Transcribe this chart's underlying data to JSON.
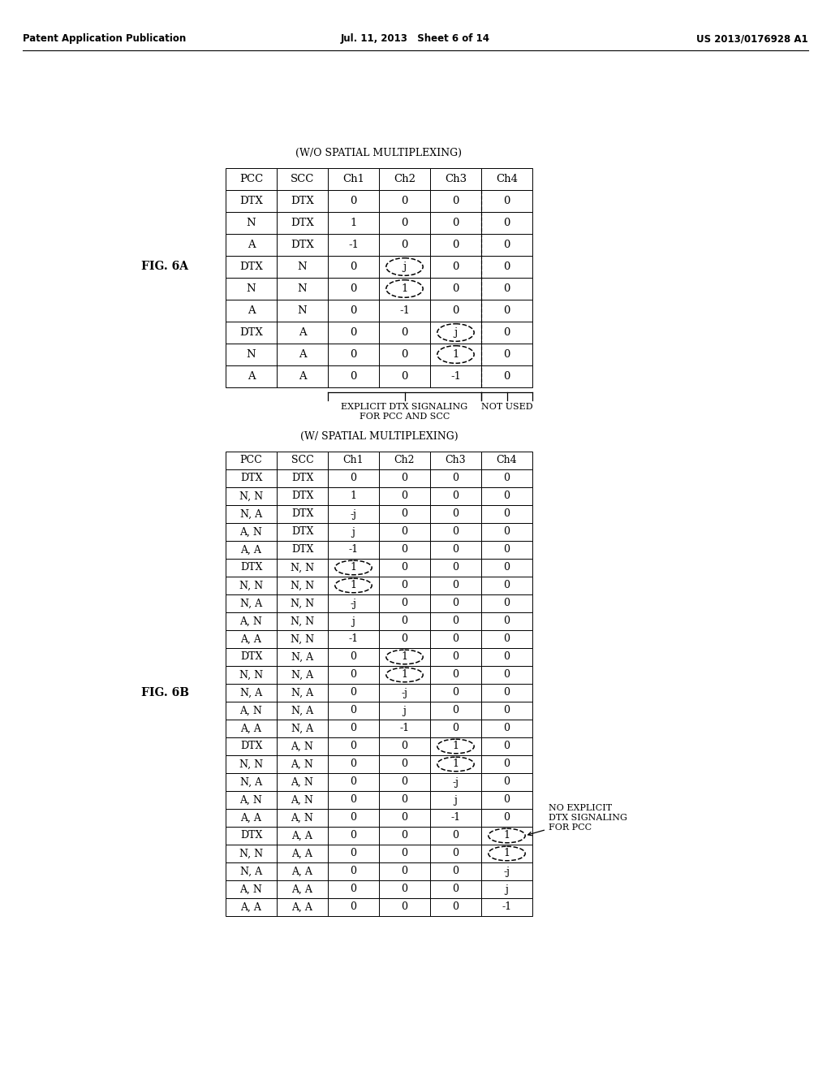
{
  "page_header": {
    "left": "Patent Application Publication",
    "center": "Jul. 11, 2013   Sheet 6 of 14",
    "right": "US 2013/0176928 A1"
  },
  "fig6a": {
    "label": "FIG. 6A",
    "title": "(W/O SPATIAL MULTIPLEXING)",
    "headers": [
      "PCC",
      "SCC",
      "Ch1",
      "Ch2",
      "Ch3",
      "Ch4"
    ],
    "rows": [
      [
        "DTX",
        "DTX",
        "0",
        "0",
        "0",
        "0"
      ],
      [
        "N",
        "DTX",
        "1",
        "0",
        "0",
        "0"
      ],
      [
        "A",
        "DTX",
        "-1",
        "0",
        "0",
        "0"
      ],
      [
        "DTX",
        "N",
        "0",
        "j",
        "0",
        "0"
      ],
      [
        "N",
        "N",
        "0",
        "1",
        "0",
        "0"
      ],
      [
        "A",
        "N",
        "0",
        "-1",
        "0",
        "0"
      ],
      [
        "DTX",
        "A",
        "0",
        "0",
        "j",
        "0"
      ],
      [
        "N",
        "A",
        "0",
        "0",
        "1",
        "0"
      ],
      [
        "A",
        "A",
        "0",
        "0",
        "-1",
        "0"
      ]
    ],
    "circled_cells": [
      [
        4,
        3
      ],
      [
        5,
        3
      ],
      [
        7,
        4
      ],
      [
        8,
        4
      ]
    ],
    "annotation_explicit": "EXPLICIT DTX SIGNALING\nFOR PCC AND SCC",
    "annotation_notused": "NOT USED"
  },
  "fig6b": {
    "label": "FIG. 6B",
    "title": "(W/ SPATIAL MULTIPLEXING)",
    "headers": [
      "PCC",
      "SCC",
      "Ch1",
      "Ch2",
      "Ch3",
      "Ch4"
    ],
    "rows": [
      [
        "DTX",
        "DTX",
        "0",
        "0",
        "0",
        "0"
      ],
      [
        "N, N",
        "DTX",
        "1",
        "0",
        "0",
        "0"
      ],
      [
        "N, A",
        "DTX",
        "-j",
        "0",
        "0",
        "0"
      ],
      [
        "A, N",
        "DTX",
        "j",
        "0",
        "0",
        "0"
      ],
      [
        "A, A",
        "DTX",
        "-1",
        "0",
        "0",
        "0"
      ],
      [
        "DTX",
        "N, N",
        "1",
        "0",
        "0",
        "0"
      ],
      [
        "N, N",
        "N, N",
        "1",
        "0",
        "0",
        "0"
      ],
      [
        "N, A",
        "N, N",
        "-j",
        "0",
        "0",
        "0"
      ],
      [
        "A, N",
        "N, N",
        "j",
        "0",
        "0",
        "0"
      ],
      [
        "A, A",
        "N, N",
        "-1",
        "0",
        "0",
        "0"
      ],
      [
        "DTX",
        "N, A",
        "0",
        "1",
        "0",
        "0"
      ],
      [
        "N, N",
        "N, A",
        "0",
        "1",
        "0",
        "0"
      ],
      [
        "N, A",
        "N, A",
        "0",
        "-j",
        "0",
        "0"
      ],
      [
        "A, N",
        "N, A",
        "0",
        "j",
        "0",
        "0"
      ],
      [
        "A, A",
        "N, A",
        "0",
        "-1",
        "0",
        "0"
      ],
      [
        "DTX",
        "A, N",
        "0",
        "0",
        "1",
        "0"
      ],
      [
        "N, N",
        "A, N",
        "0",
        "0",
        "1",
        "0"
      ],
      [
        "N, A",
        "A, N",
        "0",
        "0",
        "-j",
        "0"
      ],
      [
        "A, N",
        "A, N",
        "0",
        "0",
        "j",
        "0"
      ],
      [
        "A, A",
        "A, N",
        "0",
        "0",
        "-1",
        "0"
      ],
      [
        "DTX",
        "A, A",
        "0",
        "0",
        "0",
        "1"
      ],
      [
        "N, N",
        "A, A",
        "0",
        "0",
        "0",
        "1"
      ],
      [
        "N, A",
        "A, A",
        "0",
        "0",
        "0",
        "-j"
      ],
      [
        "A, N",
        "A, A",
        "0",
        "0",
        "0",
        "j"
      ],
      [
        "A, A",
        "A, A",
        "0",
        "0",
        "0",
        "-1"
      ]
    ],
    "circled_cells": [
      [
        6,
        2
      ],
      [
        7,
        2
      ],
      [
        11,
        3
      ],
      [
        12,
        3
      ],
      [
        16,
        4
      ],
      [
        17,
        4
      ],
      [
        21,
        5
      ],
      [
        22,
        5
      ]
    ],
    "annotation_noexplicit": "NO EXPLICIT\nDTX SIGNALING\nFOR PCC",
    "arrow_row": 21
  }
}
